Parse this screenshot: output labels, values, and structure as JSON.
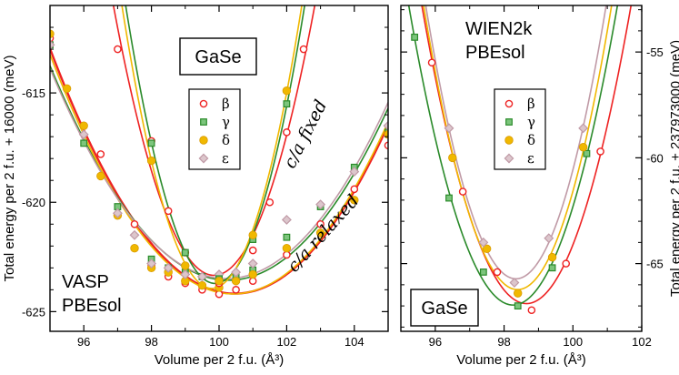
{
  "chart_data": [
    {
      "type": "line",
      "xlabel": "Volume per 2 f.u. (Å³)",
      "ylabel": "Total energy per 2 f.u. + 16000 (meV)",
      "xlim": [
        95,
        105
      ],
      "ylim": [
        -625.9,
        -611
      ],
      "xticks": [
        96,
        98,
        100,
        102,
        104
      ],
      "yticks": [
        -615,
        -620,
        -625
      ],
      "code_label": [
        "VASP",
        "PBEsol"
      ],
      "box_label": "GaSe",
      "annotations": [
        {
          "text": "c/a fixed",
          "x": 102.7,
          "y": -617.0,
          "rotate": -63
        },
        {
          "text": "c/a relaxed",
          "x": 103.2,
          "y": -621.6,
          "rotate": -48
        }
      ],
      "legend": [
        {
          "name": "β",
          "color": "#ee2222",
          "marker": "circle"
        },
        {
          "name": "γ",
          "color": "#2a8a2a",
          "marker": "square"
        },
        {
          "name": "δ",
          "color": "#f0b800",
          "marker": "circle-filled"
        },
        {
          "name": "ε",
          "color": "#c09aa6",
          "marker": "diamond"
        }
      ],
      "series": [
        {
          "name": "β",
          "group": "c/a relaxed",
          "color": "#ee2222",
          "marker": "circle",
          "x": [
            95.0,
            96.5,
            97.5,
            98.0,
            98.5,
            99.0,
            99.5,
            100.0,
            100.5,
            101.0,
            102.0,
            103.0,
            104.0,
            105.0
          ],
          "y": [
            -612.5,
            -617.8,
            -621.0,
            -622.9,
            -623.4,
            -623.7,
            -624.0,
            -624.2,
            -624.0,
            -623.6,
            -622.4,
            -621.0,
            -619.4,
            -617.4
          ]
        },
        {
          "name": "γ",
          "group": "c/a relaxed",
          "color": "#2a8a2a",
          "marker": "square",
          "x": [
            95.0,
            96.0,
            97.0,
            98.0,
            98.5,
            99.0,
            99.5,
            100.0,
            100.5,
            101.0,
            102.0,
            103.0,
            104.0,
            105.0
          ],
          "y": [
            -612.8,
            -617.3,
            -620.2,
            -622.6,
            -623.0,
            -623.2,
            -623.4,
            -623.5,
            -623.4,
            -623.1,
            -621.6,
            -620.2,
            -618.4,
            -616.8
          ]
        },
        {
          "name": "δ",
          "group": "c/a relaxed",
          "color": "#f0b800",
          "marker": "circle-filled",
          "x": [
            95.0,
            95.5,
            96.0,
            96.5,
            97.0,
            97.5,
            98.0,
            98.5,
            99.0,
            99.5,
            100.0,
            100.5,
            101.0,
            102.0,
            103.0,
            104.0,
            105.0
          ],
          "y": [
            -612.3,
            -614.8,
            -616.5,
            -618.8,
            -620.6,
            -622.1,
            -623.0,
            -623.2,
            -623.6,
            -623.8,
            -623.9,
            -623.6,
            -623.3,
            -622.1,
            -621.4,
            -619.9,
            -616.9
          ]
        },
        {
          "name": "ε",
          "group": "c/a relaxed",
          "color": "#c09aa6",
          "marker": "diamond",
          "x": [
            95.0,
            96.0,
            97.0,
            97.5,
            98.0,
            98.5,
            99.0,
            99.5,
            100.0,
            100.5,
            101.0,
            102.0,
            103.0,
            104.0,
            105.0
          ],
          "y": [
            -612.8,
            -616.9,
            -620.5,
            -621.5,
            -622.8,
            -623.0,
            -623.3,
            -623.4,
            -623.3,
            -623.2,
            -622.8,
            -620.8,
            -620.1,
            -618.6,
            -616.5
          ]
        },
        {
          "name": "β",
          "group": "c/a fixed",
          "color": "#ee2222",
          "marker": "circle",
          "x": [
            97.0,
            98.0,
            98.5,
            99.0,
            100.0,
            101.0,
            101.5,
            102.0,
            102.5
          ],
          "y": [
            -613.0,
            -617.2,
            -620.4,
            -622.3,
            -623.7,
            -622.2,
            -620.0,
            -616.8,
            -613.0
          ]
        },
        {
          "name": "γ",
          "group": "c/a fixed",
          "color": "#2a8a2a",
          "marker": "square",
          "x": [
            98.0,
            99.0,
            100.0,
            101.0,
            102.0
          ],
          "y": [
            -617.3,
            -622.3,
            -623.5,
            -621.7,
            -615.5
          ]
        },
        {
          "name": "δ",
          "group": "c/a fixed",
          "color": "#f0b800",
          "marker": "circle-filled",
          "x": [
            98.0,
            99.0,
            100.0,
            101.0,
            102.0
          ],
          "y": [
            -618.1,
            -622.9,
            -623.6,
            -621.5,
            -614.9
          ]
        }
      ]
    },
    {
      "type": "line",
      "xlabel": "Volume per 2 f.u. (Å³)",
      "ylabel": "Total energy per 2 f.u. + 237973000 (meV)",
      "xlim": [
        95,
        102
      ],
      "ylim": [
        -68.2,
        -52.8
      ],
      "xticks": [
        96,
        98,
        100,
        102
      ],
      "yticks": [
        -55,
        -60,
        -65
      ],
      "code_label": [
        "WIEN2k",
        "PBEsol"
      ],
      "box_label": "GaSe",
      "legend": [
        {
          "name": "β",
          "color": "#ee2222",
          "marker": "circle"
        },
        {
          "name": "γ",
          "color": "#2a8a2a",
          "marker": "square"
        },
        {
          "name": "δ",
          "color": "#f0b800",
          "marker": "circle-filled"
        },
        {
          "name": "ε",
          "color": "#c09aa6",
          "marker": "diamond"
        }
      ],
      "series": [
        {
          "name": "β",
          "color": "#ee2222",
          "marker": "circle",
          "x": [
            95.9,
            96.8,
            97.8,
            98.8,
            99.8,
            100.8
          ],
          "y": [
            -55.5,
            -61.6,
            -65.4,
            -67.2,
            -65.0,
            -59.7
          ]
        },
        {
          "name": "γ",
          "color": "#2a8a2a",
          "marker": "square",
          "x": [
            95.4,
            96.4,
            97.4,
            98.4,
            99.4,
            100.4
          ],
          "y": [
            -54.3,
            -61.9,
            -65.4,
            -67.0,
            -65.2,
            -59.8
          ]
        },
        {
          "name": "δ",
          "color": "#f0b800",
          "marker": "circle-filled",
          "x": [
            96.5,
            97.5,
            98.4,
            99.4,
            100.3
          ],
          "y": [
            -60.0,
            -64.3,
            -66.4,
            -64.7,
            -59.5
          ]
        },
        {
          "name": "ε",
          "color": "#c09aa6",
          "marker": "diamond",
          "x": [
            96.4,
            97.4,
            98.3,
            99.3,
            100.3
          ],
          "y": [
            -58.6,
            -64.0,
            -65.9,
            -63.8,
            -58.6
          ]
        }
      ]
    }
  ]
}
